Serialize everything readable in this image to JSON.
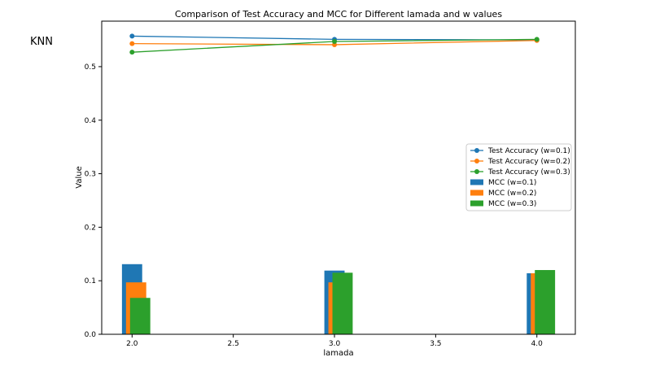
{
  "side_label": "KNN",
  "chart_data": {
    "type": "bar+line",
    "title": "Comparison of Test Accuracy and MCC for Different lamada and w values",
    "xlabel": "lamada",
    "ylabel": "Value",
    "xlim": [
      1.85,
      4.19
    ],
    "ylim": [
      0.0,
      0.585
    ],
    "xticks": [
      2.0,
      2.5,
      3.0,
      3.5,
      4.0
    ],
    "xtick_labels": [
      "2.0",
      "2.5",
      "3.0",
      "3.5",
      "4.0"
    ],
    "yticks": [
      0.0,
      0.1,
      0.2,
      0.3,
      0.4,
      0.5
    ],
    "ytick_labels": [
      "0.0",
      "0.1",
      "0.2",
      "0.3",
      "0.4",
      "0.5"
    ],
    "grid": false,
    "legend_position": "center-right",
    "x": [
      2.0,
      3.0,
      4.0
    ],
    "line_series": [
      {
        "name": "Test Accuracy (w=0.1)",
        "color": "#1f77b4",
        "values": [
          0.557,
          0.551,
          0.55
        ]
      },
      {
        "name": "Test Accuracy (w=0.2)",
        "color": "#ff7f0e",
        "values": [
          0.543,
          0.541,
          0.549
        ]
      },
      {
        "name": "Test Accuracy (w=0.3)",
        "color": "#2ca02c",
        "values": [
          0.527,
          0.547,
          0.551
        ]
      }
    ],
    "bar_series": [
      {
        "name": "MCC (w=0.1)",
        "color": "#1f77b4",
        "offset": 0.0,
        "width": 0.1,
        "values": [
          0.131,
          0.119,
          0.114
        ]
      },
      {
        "name": "MCC (w=0.2)",
        "color": "#ff7f0e",
        "offset": 0.02,
        "width": 0.1,
        "values": [
          0.097,
          0.097,
          0.114
        ]
      },
      {
        "name": "MCC (w=0.3)",
        "color": "#2ca02c",
        "offset": 0.04,
        "width": 0.1,
        "values": [
          0.068,
          0.115,
          0.12
        ]
      }
    ]
  }
}
